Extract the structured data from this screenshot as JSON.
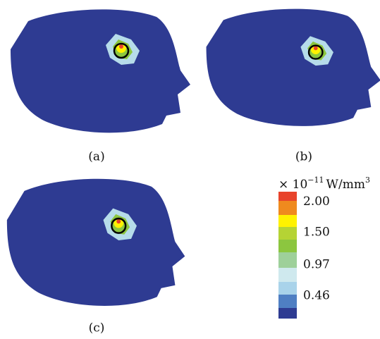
{
  "panels": [
    {
      "label": "(a)"
    },
    {
      "label": "(b)"
    },
    {
      "label": "(c)"
    }
  ],
  "colorbar": {
    "prefix": "× 10",
    "exponent": "−11",
    "unit": "W/mm",
    "unit_exponent": "3",
    "range": [
      0.09,
      2.17
    ],
    "ticks": [
      {
        "value": 2,
        "label": "2.00"
      },
      {
        "value": 1.5,
        "label": "1.50"
      },
      {
        "value": 0.97,
        "label": "0.97"
      },
      {
        "value": 0.46,
        "label": "0.46"
      }
    ]
  }
}
